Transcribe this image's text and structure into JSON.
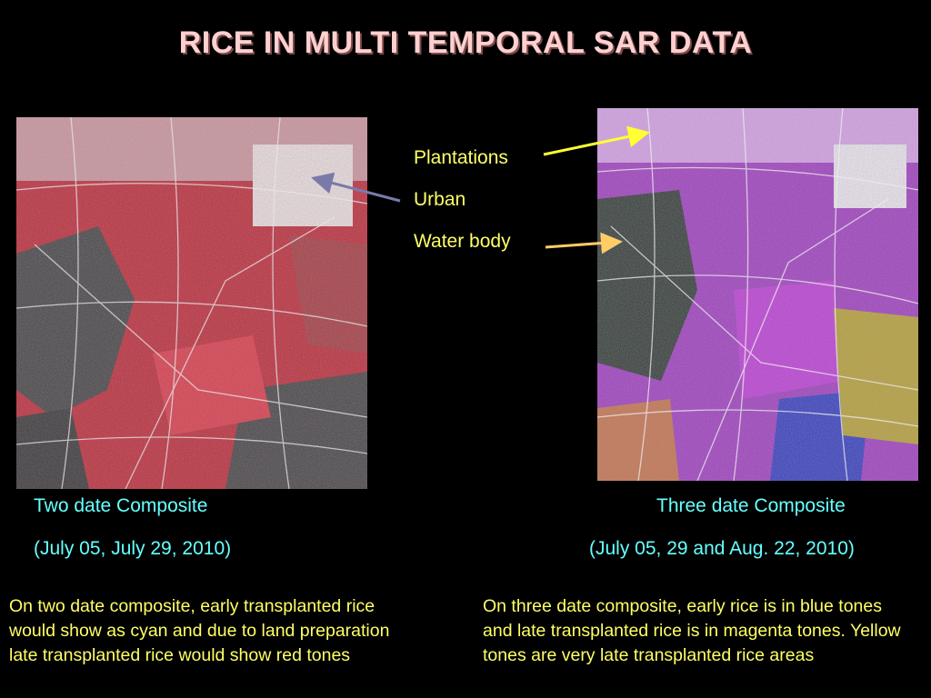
{
  "slide": {
    "title": "RICE IN MULTI TEMPORAL SAR DATA",
    "legend": {
      "plantations": "Plantations",
      "urban": "Urban",
      "water_body": "Water body"
    },
    "left_panel": {
      "caption": "Two date Composite",
      "dates": "(July 05, July 29, 2010)",
      "note": "On two date composite, early transplanted rice would show as cyan and due to land preparation late transplanted rice would show red tones"
    },
    "right_panel": {
      "caption": "Three date Composite",
      "dates": "(July 05, 29 and Aug. 22, 2010)",
      "note": "On three date composite, early rice is in blue tones and late transplanted rice is in magenta tones. Yellow tones are very late transplanted rice areas"
    },
    "colors": {
      "background": "#000000",
      "title": "#ffd0d0",
      "legend_text": "#ffff66",
      "caption_text": "#66ffff",
      "arrow_plantations": "#ffff33",
      "arrow_urban": "#7a7aaa",
      "arrow_water": "#ffcc66"
    }
  }
}
